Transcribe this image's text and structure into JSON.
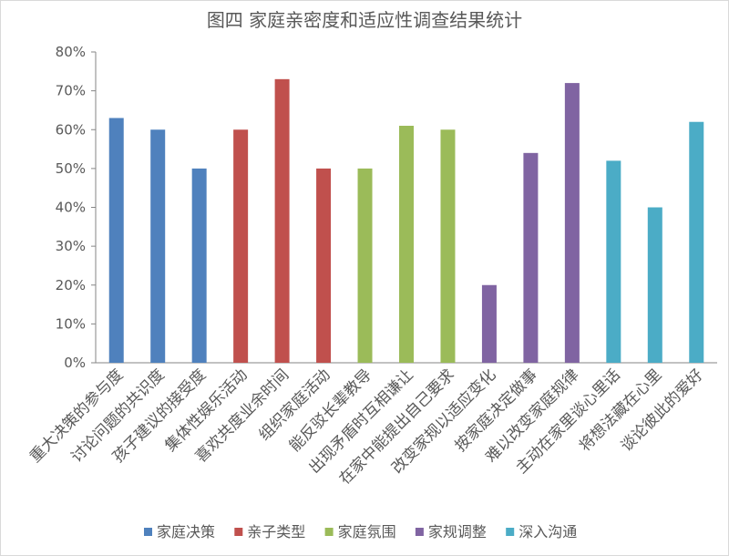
{
  "chart_data": {
    "type": "bar",
    "title": "图四 家庭亲密度和适应性调查结果统计",
    "xlabel": "",
    "ylabel": "",
    "ylim": [
      0,
      80
    ],
    "yticks": [
      {
        "value": 0,
        "label": "0%"
      },
      {
        "value": 10,
        "label": "10%"
      },
      {
        "value": 20,
        "label": "20%"
      },
      {
        "value": 30,
        "label": "30%"
      },
      {
        "value": 40,
        "label": "40%"
      },
      {
        "value": 50,
        "label": "50%"
      },
      {
        "value": 60,
        "label": "60%"
      },
      {
        "value": 70,
        "label": "70%"
      },
      {
        "value": 80,
        "label": "80%"
      }
    ],
    "grid": false,
    "legend": "bottom",
    "categories": [
      "重大决策的参与度",
      "讨论问题的共识度",
      "孩子建议的接受度",
      "集体性娱乐活动",
      "喜欢共度业余时间",
      "组织家庭活动",
      "能反驳长辈教导",
      "出现矛盾时互相谦让",
      "在家中能提出自己要求",
      "改变家规以适应变化",
      "按家庭决定做事",
      "难以改变家庭规律",
      "主动在家里谈心里话",
      "将想法藏在心里",
      "谈论彼此的爱好"
    ],
    "series": [
      {
        "name": "家庭决策",
        "color": "#4F81BD",
        "values": [
          63,
          60,
          50,
          null,
          null,
          null,
          null,
          null,
          null,
          null,
          null,
          null,
          null,
          null,
          null
        ]
      },
      {
        "name": "亲子类型",
        "color": "#C0504D",
        "values": [
          null,
          null,
          null,
          60,
          73,
          50,
          null,
          null,
          null,
          null,
          null,
          null,
          null,
          null,
          null
        ]
      },
      {
        "name": "家庭氛围",
        "color": "#9BBB59",
        "values": [
          null,
          null,
          null,
          null,
          null,
          null,
          50,
          61,
          60,
          null,
          null,
          null,
          null,
          null,
          null
        ]
      },
      {
        "name": "家规调整",
        "color": "#8064A2",
        "values": [
          null,
          null,
          null,
          null,
          null,
          null,
          null,
          null,
          null,
          20,
          54,
          72,
          null,
          null,
          null
        ]
      },
      {
        "name": "深入沟通",
        "color": "#4BACC6",
        "values": [
          null,
          null,
          null,
          null,
          null,
          null,
          null,
          null,
          null,
          null,
          null,
          null,
          52,
          40,
          62
        ]
      }
    ]
  }
}
